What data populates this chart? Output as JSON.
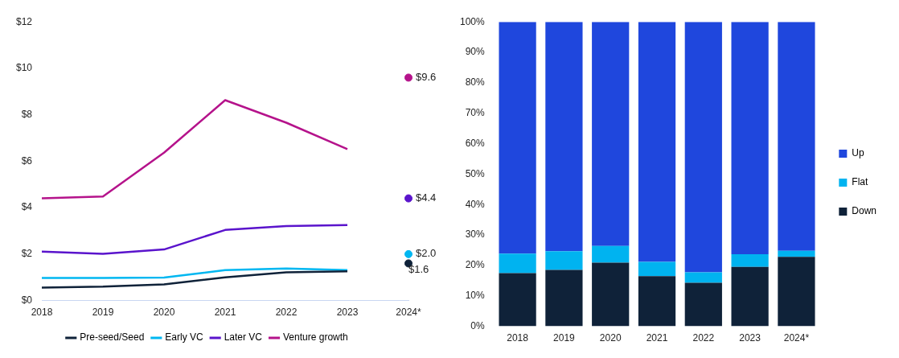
{
  "chart_data": [
    {
      "type": "line",
      "categories": [
        "2018",
        "2019",
        "2020",
        "2021",
        "2022",
        "2023",
        "2024*"
      ],
      "ylim": [
        0,
        12
      ],
      "yticks": [
        {
          "value": 0,
          "label": "$0"
        },
        {
          "value": 2,
          "label": "$2"
        },
        {
          "value": 4,
          "label": "$4"
        },
        {
          "value": 6,
          "label": "$6"
        },
        {
          "value": 8,
          "label": "$8"
        },
        {
          "value": 10,
          "label": "$10"
        },
        {
          "value": 12,
          "label": "$12"
        }
      ],
      "grid": false,
      "legend": "bottom",
      "marker": "none",
      "line_style": "solid",
      "series": [
        {
          "name": "Pre-seed/Seed",
          "color": "#0f2239",
          "values": [
            0.56,
            0.6,
            0.7,
            1.0,
            1.22,
            1.26,
            null
          ]
        },
        {
          "name": "Early VC",
          "color": "#00b7f1",
          "values": [
            0.97,
            0.97,
            0.99,
            1.31,
            1.38,
            1.31,
            null
          ]
        },
        {
          "name": "Later VC",
          "color": "#5a14cc",
          "values": [
            2.11,
            2.01,
            2.2,
            3.04,
            3.21,
            3.25,
            null
          ]
        },
        {
          "name": "Venture growth",
          "color": "#b5138b",
          "values": [
            4.4,
            4.48,
            6.37,
            8.63,
            7.66,
            6.52,
            null
          ]
        },
        {
          "type": "scatter",
          "marker": "circle",
          "color": "#b5138b",
          "x": [
            "2024*"
          ],
          "values": [
            9.6
          ],
          "value_labels": [
            "$9.6"
          ]
        },
        {
          "type": "scatter",
          "marker": "circle",
          "color": "#5a14cc",
          "x": [
            "2024*"
          ],
          "values": [
            4.4
          ],
          "value_labels": [
            "$4.4"
          ]
        },
        {
          "type": "scatter",
          "marker": "circle",
          "color": "#00b7f1",
          "x": [
            "2024*"
          ],
          "values": [
            2.0
          ],
          "value_labels": [
            "$2.0"
          ]
        },
        {
          "type": "scatter",
          "marker": "circle",
          "color": "#0f2239",
          "x": [
            "2024*"
          ],
          "values": [
            1.6
          ],
          "value_labels": [
            "$1.6"
          ]
        }
      ]
    },
    {
      "type": "bar",
      "stacked": true,
      "categories": [
        "2018",
        "2019",
        "2020",
        "2021",
        "2022",
        "2023",
        "2024*"
      ],
      "ylim": [
        0,
        100
      ],
      "yticks": [
        {
          "value": 0,
          "label": "0%"
        },
        {
          "value": 10,
          "label": "10%"
        },
        {
          "value": 20,
          "label": "20%"
        },
        {
          "value": 30,
          "label": "30%"
        },
        {
          "value": 40,
          "label": "40%"
        },
        {
          "value": 50,
          "label": "50%"
        },
        {
          "value": 60,
          "label": "60%"
        },
        {
          "value": 70,
          "label": "70%"
        },
        {
          "value": 80,
          "label": "80%"
        },
        {
          "value": 90,
          "label": "90%"
        },
        {
          "value": 100,
          "label": "100%"
        }
      ],
      "grid": false,
      "legend": "right",
      "series": [
        {
          "name": "Down",
          "color": "#0f2239",
          "values": [
            17.5,
            18.5,
            20.9,
            16.5,
            14.3,
            19.5,
            22.8
          ]
        },
        {
          "name": "Flat",
          "color": "#00b3f0",
          "values": [
            6.4,
            6.2,
            5.5,
            4.7,
            3.4,
            4.2,
            2.0
          ]
        },
        {
          "name": "Up",
          "color": "#1f47dd",
          "values": [
            76.1,
            75.3,
            73.6,
            78.8,
            82.3,
            76.3,
            75.2
          ]
        }
      ]
    }
  ]
}
